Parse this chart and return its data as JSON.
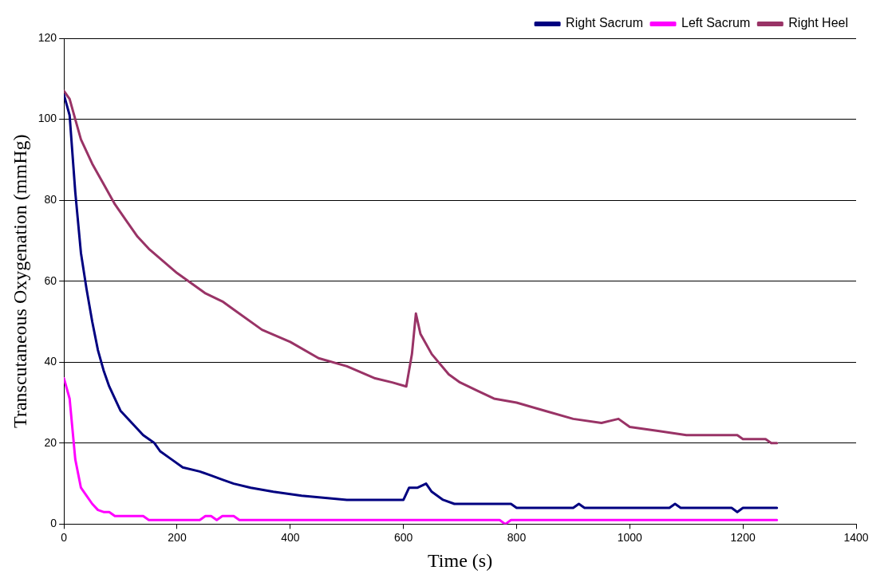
{
  "chart_data": {
    "type": "line",
    "xlabel": "Time (s)",
    "ylabel": "Transcutaneous Oxygenation (mmHg)",
    "xlim": [
      0,
      1400
    ],
    "xticks": [
      0,
      200,
      400,
      600,
      800,
      1000,
      1200,
      1400
    ],
    "ylim": [
      0,
      120
    ],
    "yticks": [
      0,
      20,
      40,
      60,
      80,
      100,
      120
    ],
    "grid": "y",
    "legend": "top right",
    "marker": "none",
    "line_style": "solid",
    "series": [
      {
        "name": "Right Sacrum",
        "color": "#000080",
        "x": [
          0,
          10,
          20,
          30,
          40,
          50,
          60,
          70,
          80,
          100,
          120,
          140,
          160,
          170,
          190,
          210,
          240,
          260,
          280,
          300,
          330,
          370,
          420,
          500,
          600,
          610,
          625,
          640,
          650,
          670,
          690,
          790,
          800,
          900,
          910,
          920,
          1070,
          1080,
          1090,
          1180,
          1190,
          1200,
          1260
        ],
        "values": [
          106,
          101,
          82,
          67,
          58,
          50,
          43,
          38,
          34,
          28,
          25,
          22,
          20,
          18,
          16,
          14,
          13,
          12,
          11,
          10,
          9,
          8,
          7,
          6,
          6,
          9,
          9,
          10,
          8,
          6,
          5,
          5,
          4,
          4,
          5,
          4,
          4,
          5,
          4,
          4,
          3,
          4,
          4
        ]
      },
      {
        "name": "Left Sacrum",
        "color": "#ff00ff",
        "x": [
          0,
          10,
          20,
          30,
          40,
          50,
          60,
          70,
          80,
          90,
          140,
          150,
          240,
          250,
          260,
          270,
          280,
          300,
          310,
          770,
          780,
          790,
          1260
        ],
        "values": [
          36,
          31,
          16,
          9,
          7,
          5,
          3.5,
          3,
          3,
          2,
          2,
          1,
          1,
          2,
          2,
          1,
          2,
          2,
          1,
          1,
          0,
          1,
          1
        ]
      },
      {
        "name": "Right Heel",
        "color": "#993366",
        "x": [
          0,
          10,
          20,
          30,
          50,
          70,
          90,
          110,
          130,
          150,
          200,
          250,
          280,
          300,
          350,
          400,
          450,
          500,
          550,
          580,
          605,
          615,
          622,
          630,
          650,
          680,
          700,
          730,
          760,
          800,
          850,
          900,
          950,
          980,
          1000,
          1050,
          1100,
          1150,
          1190,
          1200,
          1240,
          1250,
          1260
        ],
        "values": [
          107,
          105,
          100,
          95,
          89,
          84,
          79,
          75,
          71,
          68,
          62,
          57,
          55,
          53,
          48,
          45,
          41,
          39,
          36,
          35,
          34,
          42,
          52,
          47,
          42,
          37,
          35,
          33,
          31,
          30,
          28,
          26,
          25,
          26,
          24,
          23,
          22,
          22,
          22,
          21,
          21,
          20,
          20
        ]
      }
    ]
  }
}
